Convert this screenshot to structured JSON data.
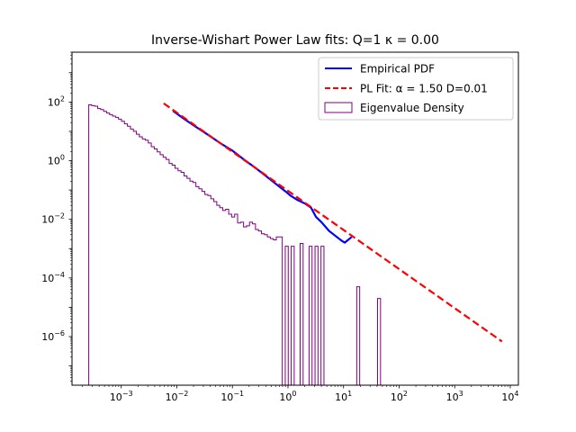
{
  "chart_data": {
    "type": "line",
    "title": "Inverse-Wishart Power Law fits: Q=1 κ = 0.00",
    "xlabel": "",
    "ylabel": "",
    "xscale": "log",
    "yscale": "log",
    "xlim": [
      0.00013,
      14000
    ],
    "ylim": [
      2.2e-08,
      5000
    ],
    "grid": false,
    "legend_position": "top-right",
    "x_ticks": [
      {
        "value": 0.001,
        "base": "10",
        "exp": "−3"
      },
      {
        "value": 0.01,
        "base": "10",
        "exp": "−2"
      },
      {
        "value": 0.1,
        "base": "10",
        "exp": "−1"
      },
      {
        "value": 1,
        "base": "10",
        "exp": "0"
      },
      {
        "value": 10,
        "base": "10",
        "exp": "1"
      },
      {
        "value": 100,
        "base": "10",
        "exp": "2"
      },
      {
        "value": 1000,
        "base": "10",
        "exp": "3"
      },
      {
        "value": 10000,
        "base": "10",
        "exp": "4"
      }
    ],
    "y_ticks": [
      {
        "value": 1e-06,
        "base": "10",
        "exp": "−6"
      },
      {
        "value": 0.0001,
        "base": "10",
        "exp": "−4"
      },
      {
        "value": 0.01,
        "base": "10",
        "exp": "−2"
      },
      {
        "value": 1,
        "base": "10",
        "exp": "0"
      },
      {
        "value": 100,
        "base": "10",
        "exp": "2"
      }
    ],
    "series": [
      {
        "name": "Empirical PDF",
        "kind": "line",
        "color": "#0000ff",
        "dash": "solid",
        "points": [
          [
            0.0085,
            50
          ],
          [
            0.013,
            28
          ],
          [
            0.02,
            16
          ],
          [
            0.035,
            8
          ],
          [
            0.06,
            4
          ],
          [
            0.1,
            2.2
          ],
          [
            0.16,
            1.1
          ],
          [
            0.25,
            0.6
          ],
          [
            0.4,
            0.3
          ],
          [
            0.7,
            0.13
          ],
          [
            0.9,
            0.09
          ],
          [
            1.1,
            0.065
          ],
          [
            1.5,
            0.045
          ],
          [
            2.0,
            0.035
          ],
          [
            2.6,
            0.025
          ],
          [
            3.2,
            0.012
          ],
          [
            4.0,
            0.008
          ],
          [
            5.5,
            0.004
          ],
          [
            7.0,
            0.0028
          ],
          [
            9.5,
            0.0018
          ],
          [
            10.5,
            0.0016
          ],
          [
            14,
            0.0025
          ]
        ]
      },
      {
        "name": "PL Fit: α = 1.50 D=0.01",
        "kind": "line",
        "color": "#ff0000",
        "dash": "dashed",
        "points": [
          [
            0.0058,
            90
          ],
          [
            7100,
            6.8e-07
          ]
        ]
      },
      {
        "name": "Eigenvalue Density",
        "kind": "step-histogram",
        "color": "#800080",
        "edges_start": 0.00026,
        "bin_ratio": 1.1313,
        "baseline": 2.2e-08,
        "heights": [
          80,
          75,
          72,
          60,
          55,
          48,
          42,
          37,
          33,
          30,
          26,
          22,
          18,
          15,
          12,
          10,
          8,
          6.5,
          5.5,
          5,
          4,
          3,
          2.5,
          2,
          1.6,
          1.3,
          1.1,
          0.8,
          0.7,
          0.55,
          0.45,
          0.4,
          0.3,
          0.25,
          0.2,
          0.18,
          0.13,
          0.11,
          0.09,
          0.07,
          0.065,
          0.05,
          0.04,
          0.03,
          0.025,
          0.02,
          0.022,
          0.015,
          0.012,
          0.015,
          0.0075,
          0.008,
          0.0055,
          0.006,
          0.008,
          0.007,
          0.0045,
          0.004,
          0.0032,
          0.003,
          0.0025,
          0.0022,
          0.002,
          0.0025,
          0.0025,
          0,
          0.0012,
          0,
          0.0012,
          0,
          0,
          0.0015,
          0,
          0,
          0.0012,
          0,
          0.0012,
          0,
          0.0012,
          0,
          0,
          0,
          0,
          0,
          0,
          0,
          0,
          0,
          0,
          0,
          5e-05,
          0,
          0,
          0,
          0,
          0,
          0,
          2e-05
        ]
      }
    ]
  },
  "legend": {
    "empirical_pdf": "Empirical PDF",
    "pl_fit": "PL Fit: α = 1.50 D=0.01",
    "eigenvalue_density": "Eigenvalue Density"
  }
}
